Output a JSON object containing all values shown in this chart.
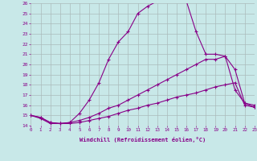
{
  "xlabel": "Windchill (Refroidissement éolien,°C)",
  "bg_color": "#c8e8e8",
  "grid_color": "#aabbbb",
  "line_color": "#880088",
  "xmin": 0,
  "xmax": 23,
  "ymin": 14,
  "ymax": 26,
  "line1_x": [
    0,
    1,
    2,
    3,
    4,
    5,
    6,
    7,
    8,
    9,
    10,
    11,
    12,
    13,
    14,
    15,
    16,
    17,
    18,
    19,
    20,
    21,
    22,
    23
  ],
  "line1_y": [
    15.0,
    14.7,
    14.2,
    14.2,
    14.3,
    15.2,
    16.5,
    18.2,
    20.5,
    22.2,
    23.2,
    25.0,
    25.7,
    26.2,
    26.5,
    26.5,
    26.2,
    23.2,
    21.0,
    21.0,
    20.8,
    17.5,
    16.2,
    16.0
  ],
  "line2_x": [
    0,
    1,
    2,
    3,
    4,
    5,
    6,
    7,
    8,
    9,
    10,
    11,
    12,
    13,
    14,
    15,
    16,
    17,
    18,
    19,
    20,
    21,
    22,
    23
  ],
  "line2_y": [
    15.0,
    14.8,
    14.3,
    14.2,
    14.3,
    14.5,
    14.8,
    15.2,
    15.7,
    16.0,
    16.5,
    17.0,
    17.5,
    18.0,
    18.5,
    19.0,
    19.5,
    20.0,
    20.5,
    20.5,
    20.8,
    19.5,
    16.2,
    15.8
  ],
  "line3_x": [
    0,
    1,
    2,
    3,
    4,
    5,
    6,
    7,
    8,
    9,
    10,
    11,
    12,
    13,
    14,
    15,
    16,
    17,
    18,
    19,
    20,
    21,
    22,
    23
  ],
  "line3_y": [
    15.0,
    14.8,
    14.3,
    14.2,
    14.2,
    14.3,
    14.5,
    14.7,
    14.9,
    15.2,
    15.5,
    15.7,
    16.0,
    16.2,
    16.5,
    16.8,
    17.0,
    17.2,
    17.5,
    17.8,
    18.0,
    18.2,
    16.0,
    15.8
  ]
}
